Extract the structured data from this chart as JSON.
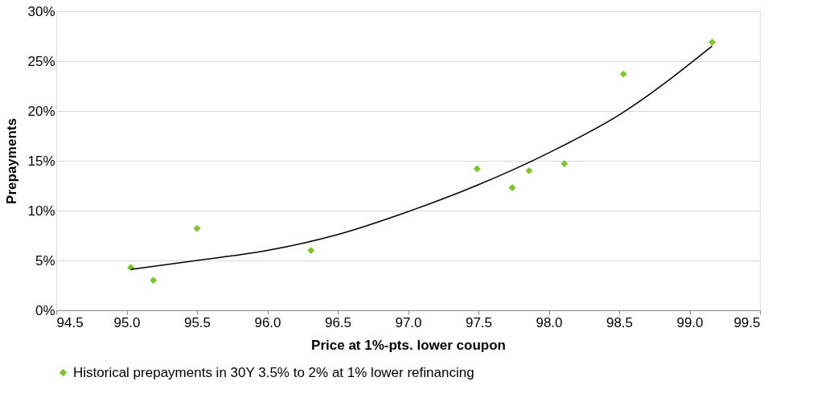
{
  "chart_data": {
    "type": "scatter",
    "xlabel": "Price at 1%-pts. lower coupon",
    "ylabel": "Prepayments",
    "xlim": [
      94.5,
      99.5
    ],
    "xticks": [
      {
        "value": 94.5,
        "label": "94.5"
      },
      {
        "value": 95,
        "label": "95.0"
      },
      {
        "value": 95.5,
        "label": "95.5"
      },
      {
        "value": 96,
        "label": "96.0"
      },
      {
        "value": 96.5,
        "label": "96.5"
      },
      {
        "value": 97,
        "label": "97.0"
      },
      {
        "value": 97.5,
        "label": "97.5"
      },
      {
        "value": 98,
        "label": "98.0"
      },
      {
        "value": 98.5,
        "label": "98.5"
      },
      {
        "value": 99,
        "label": "99.0"
      },
      {
        "value": 99.5,
        "label": "99.5"
      }
    ],
    "ylim": [
      0,
      30
    ],
    "yticks": [
      {
        "value": 0,
        "label": "0%"
      },
      {
        "value": 5,
        "label": "5%"
      },
      {
        "value": 10,
        "label": "10%"
      },
      {
        "value": 15,
        "label": "15%"
      },
      {
        "value": 20,
        "label": "20%"
      },
      {
        "value": 25,
        "label": "25%"
      },
      {
        "value": 30,
        "label": "30%"
      }
    ],
    "grid": "y",
    "legend": "bottom",
    "marker": "diamond",
    "series": [
      {
        "name": "Historical prepayments in 30Y 3.5% to 2%  at 1% lower refinancing",
        "color": "#7dc52e",
        "x": [
          95.03,
          95.19,
          95.5,
          96.31,
          97.49,
          97.74,
          97.86,
          98.11,
          98.53,
          99.16
        ],
        "values": [
          4.3,
          3.0,
          8.2,
          6.0,
          14.2,
          12.3,
          14.0,
          14.7,
          23.7,
          26.9
        ]
      },
      {
        "type": "line",
        "color": "#000000",
        "marker": "none",
        "line_style": "solid",
        "x": [
          95.03,
          95.5,
          96.0,
          96.5,
          97.0,
          97.5,
          98.0,
          98.5,
          99.16
        ],
        "values": [
          4.1,
          5.0,
          6.0,
          7.6,
          9.9,
          12.6,
          15.8,
          19.6,
          26.5
        ]
      }
    ]
  }
}
